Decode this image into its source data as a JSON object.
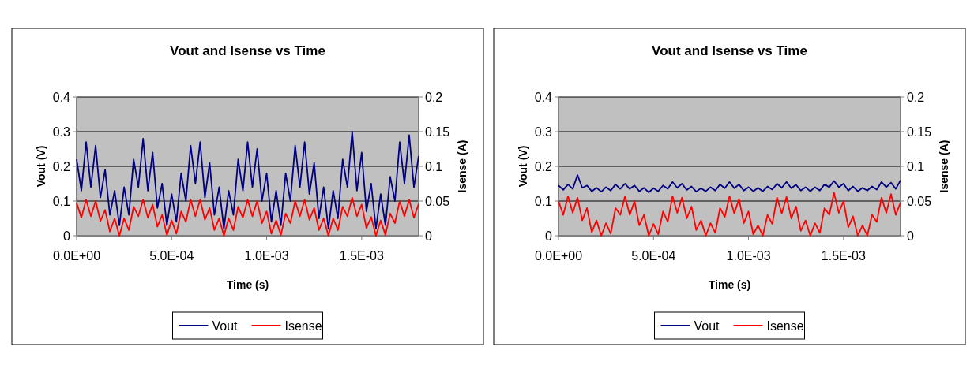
{
  "chart_data": [
    {
      "type": "line",
      "title": "Vout and Isense vs Time",
      "xlabel": "Time (s)",
      "ylabel": "Vout (V)",
      "y2label": "Isense (A)",
      "x": [
        0,
        2.5e-05,
        5e-05,
        7.5e-05,
        0.0001,
        0.000125,
        0.00015,
        0.000175,
        0.0002,
        0.000225,
        0.00025,
        0.000275,
        0.0003,
        0.000325,
        0.00035,
        0.000375,
        0.0004,
        0.000425,
        0.00045,
        0.000475,
        0.0005,
        0.000525,
        0.00055,
        0.000575,
        0.0006,
        0.000625,
        0.00065,
        0.000675,
        0.0007,
        0.000725,
        0.00075,
        0.000775,
        0.0008,
        0.000825,
        0.00085,
        0.000875,
        0.0009,
        0.000925,
        0.00095,
        0.000975,
        0.001,
        0.001025,
        0.00105,
        0.001075,
        0.0011,
        0.001125,
        0.00115,
        0.001175,
        0.0012,
        0.001225,
        0.00125,
        0.001275,
        0.0013,
        0.001325,
        0.00135,
        0.001375,
        0.0014,
        0.001425,
        0.00145,
        0.001475,
        0.0015,
        0.001525,
        0.00155,
        0.001575,
        0.0016,
        0.001625,
        0.00165,
        0.001675,
        0.0017,
        0.001725,
        0.00175,
        0.001775,
        0.0018
      ],
      "xlim": [
        0,
        0.0018
      ],
      "xticks": [
        {
          "value": 0,
          "label": "0.0E+00"
        },
        {
          "value": 0.0005,
          "label": "5.0E-04"
        },
        {
          "value": 0.001,
          "label": "1.0E-03"
        },
        {
          "value": 0.0015,
          "label": "1.5E-03"
        }
      ],
      "ylim": [
        0,
        0.4
      ],
      "yticks": [
        0,
        0.1,
        0.2,
        0.3,
        0.4
      ],
      "y2lim": [
        0,
        0.2
      ],
      "y2ticks": [
        0,
        0.05,
        0.1,
        0.15,
        0.2
      ],
      "grid": "y",
      "legend": "bottom",
      "line_style": "solid",
      "marker": "none",
      "series": [
        {
          "name": "Vout",
          "color": "#000080",
          "values": [
            0.22,
            0.13,
            0.27,
            0.14,
            0.26,
            0.11,
            0.19,
            0.06,
            0.13,
            0.03,
            0.14,
            0.06,
            0.22,
            0.14,
            0.28,
            0.13,
            0.24,
            0.08,
            0.15,
            0.03,
            0.12,
            0.04,
            0.18,
            0.1,
            0.26,
            0.15,
            0.27,
            0.11,
            0.21,
            0.06,
            0.14,
            0.02,
            0.13,
            0.06,
            0.22,
            0.13,
            0.27,
            0.14,
            0.25,
            0.1,
            0.18,
            0.04,
            0.13,
            0.03,
            0.18,
            0.1,
            0.26,
            0.14,
            0.27,
            0.12,
            0.21,
            0.05,
            0.14,
            0.02,
            0.13,
            0.05,
            0.22,
            0.14,
            0.3,
            0.13,
            0.24,
            0.07,
            0.15,
            0.02,
            0.12,
            0.03,
            0.17,
            0.1,
            0.27,
            0.15,
            0.29,
            0.14,
            0.23
          ]
        },
        {
          "name": "Isense",
          "color": "#ff0000",
          "axis": "y2",
          "values": [
            0.047,
            0.026,
            0.052,
            0.028,
            0.05,
            0.021,
            0.037,
            0.006,
            0.025,
            0,
            0.025,
            0.008,
            0.042,
            0.028,
            0.052,
            0.026,
            0.045,
            0.013,
            0.03,
            0.001,
            0.022,
            0.003,
            0.035,
            0.02,
            0.052,
            0.028,
            0.052,
            0.023,
            0.04,
            0.008,
            0.025,
            0,
            0.025,
            0.008,
            0.042,
            0.026,
            0.052,
            0.028,
            0.05,
            0.018,
            0.035,
            0.003,
            0.022,
            0.001,
            0.032,
            0.018,
            0.05,
            0.028,
            0.052,
            0.023,
            0.04,
            0.008,
            0.025,
            0,
            0.025,
            0.008,
            0.042,
            0.028,
            0.055,
            0.028,
            0.045,
            0.011,
            0.027,
            0,
            0.022,
            0.001,
            0.032,
            0.018,
            0.05,
            0.028,
            0.052,
            0.026,
            0.046
          ]
        }
      ]
    },
    {
      "type": "line",
      "title": "Vout and Isense vs Time",
      "xlabel": "Time (s)",
      "ylabel": "Vout (V)",
      "y2label": "Isense (A)",
      "x": [
        0,
        2.5e-05,
        5e-05,
        7.5e-05,
        0.0001,
        0.000125,
        0.00015,
        0.000175,
        0.0002,
        0.000225,
        0.00025,
        0.000275,
        0.0003,
        0.000325,
        0.00035,
        0.000375,
        0.0004,
        0.000425,
        0.00045,
        0.000475,
        0.0005,
        0.000525,
        0.00055,
        0.000575,
        0.0006,
        0.000625,
        0.00065,
        0.000675,
        0.0007,
        0.000725,
        0.00075,
        0.000775,
        0.0008,
        0.000825,
        0.00085,
        0.000875,
        0.0009,
        0.000925,
        0.00095,
        0.000975,
        0.001,
        0.001025,
        0.00105,
        0.001075,
        0.0011,
        0.001125,
        0.00115,
        0.001175,
        0.0012,
        0.001225,
        0.00125,
        0.001275,
        0.0013,
        0.001325,
        0.00135,
        0.001375,
        0.0014,
        0.001425,
        0.00145,
        0.001475,
        0.0015,
        0.001525,
        0.00155,
        0.001575,
        0.0016,
        0.001625,
        0.00165,
        0.001675,
        0.0017,
        0.001725,
        0.00175,
        0.001775,
        0.0018
      ],
      "xlim": [
        0,
        0.0018
      ],
      "xticks": [
        {
          "value": 0,
          "label": "0.0E+00"
        },
        {
          "value": 0.0005,
          "label": "5.0E-04"
        },
        {
          "value": 0.001,
          "label": "1.0E-03"
        },
        {
          "value": 0.0015,
          "label": "1.5E-03"
        }
      ],
      "ylim": [
        0,
        0.4
      ],
      "yticks": [
        0,
        0.1,
        0.2,
        0.3,
        0.4
      ],
      "y2lim": [
        0,
        0.2
      ],
      "y2ticks": [
        0,
        0.05,
        0.1,
        0.15,
        0.2
      ],
      "grid": "y",
      "legend": "bottom",
      "line_style": "solid",
      "marker": "none",
      "series": [
        {
          "name": "Vout",
          "color": "#000080",
          "values": [
            0.145,
            0.132,
            0.148,
            0.135,
            0.175,
            0.138,
            0.145,
            0.128,
            0.138,
            0.127,
            0.14,
            0.13,
            0.148,
            0.135,
            0.15,
            0.135,
            0.145,
            0.128,
            0.138,
            0.125,
            0.137,
            0.128,
            0.145,
            0.135,
            0.155,
            0.138,
            0.15,
            0.132,
            0.142,
            0.127,
            0.137,
            0.128,
            0.14,
            0.13,
            0.148,
            0.137,
            0.155,
            0.137,
            0.148,
            0.13,
            0.14,
            0.128,
            0.138,
            0.128,
            0.142,
            0.133,
            0.15,
            0.138,
            0.155,
            0.137,
            0.147,
            0.13,
            0.14,
            0.128,
            0.14,
            0.13,
            0.148,
            0.14,
            0.158,
            0.14,
            0.15,
            0.13,
            0.142,
            0.128,
            0.138,
            0.13,
            0.142,
            0.133,
            0.155,
            0.14,
            0.153,
            0.135,
            0.16
          ]
        },
        {
          "name": "Isense",
          "color": "#ff0000",
          "axis": "y2",
          "values": [
            0.05,
            0.03,
            0.057,
            0.033,
            0.055,
            0.022,
            0.04,
            0.005,
            0.022,
            0,
            0.018,
            0.003,
            0.04,
            0.03,
            0.057,
            0.03,
            0.05,
            0.015,
            0.03,
            0,
            0.017,
            0.002,
            0.035,
            0.02,
            0.057,
            0.033,
            0.055,
            0.025,
            0.042,
            0.008,
            0.022,
            0,
            0.018,
            0.004,
            0.04,
            0.027,
            0.057,
            0.032,
            0.053,
            0.018,
            0.035,
            0.002,
            0.015,
            0,
            0.03,
            0.017,
            0.055,
            0.032,
            0.056,
            0.025,
            0.042,
            0.007,
            0.022,
            0,
            0.018,
            0.004,
            0.04,
            0.03,
            0.062,
            0.033,
            0.05,
            0.012,
            0.028,
            0,
            0.015,
            0,
            0.03,
            0.02,
            0.055,
            0.033,
            0.06,
            0.03,
            0.048
          ]
        }
      ]
    }
  ]
}
